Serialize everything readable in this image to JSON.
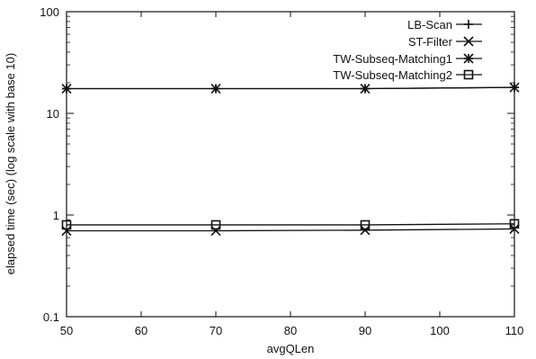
{
  "chart_data": {
    "type": "line",
    "xlabel": "avgQLen",
    "ylabel": "elapsed time (sec) (log scale with base 10)",
    "x": [
      50,
      70,
      90,
      110
    ],
    "xlim": [
      50,
      110
    ],
    "ylim": [
      0.1,
      100
    ],
    "yscale": "log",
    "grid": false,
    "legend_position": "top-right",
    "x_ticks": [
      50,
      60,
      70,
      80,
      90,
      100,
      110
    ],
    "x_tick_labels": [
      "50",
      "60",
      "70",
      "80",
      "90",
      "100",
      "110"
    ],
    "y_ticks": [
      0.1,
      1,
      10,
      100
    ],
    "y_tick_labels": [
      "0.1",
      "1",
      "10",
      "100"
    ],
    "series": [
      {
        "name": "LB-Scan",
        "marker": "plus",
        "values": [
          17.5,
          17.5,
          17.5,
          18.0
        ]
      },
      {
        "name": "ST-Filter",
        "marker": "cross",
        "values": [
          0.7,
          0.7,
          0.71,
          0.73
        ]
      },
      {
        "name": "TW-Subseq-Matching1",
        "marker": "star",
        "values": [
          17.5,
          17.5,
          17.5,
          18.0
        ]
      },
      {
        "name": "TW-Subseq-Matching2",
        "marker": "square",
        "values": [
          0.8,
          0.8,
          0.8,
          0.82
        ]
      }
    ]
  }
}
